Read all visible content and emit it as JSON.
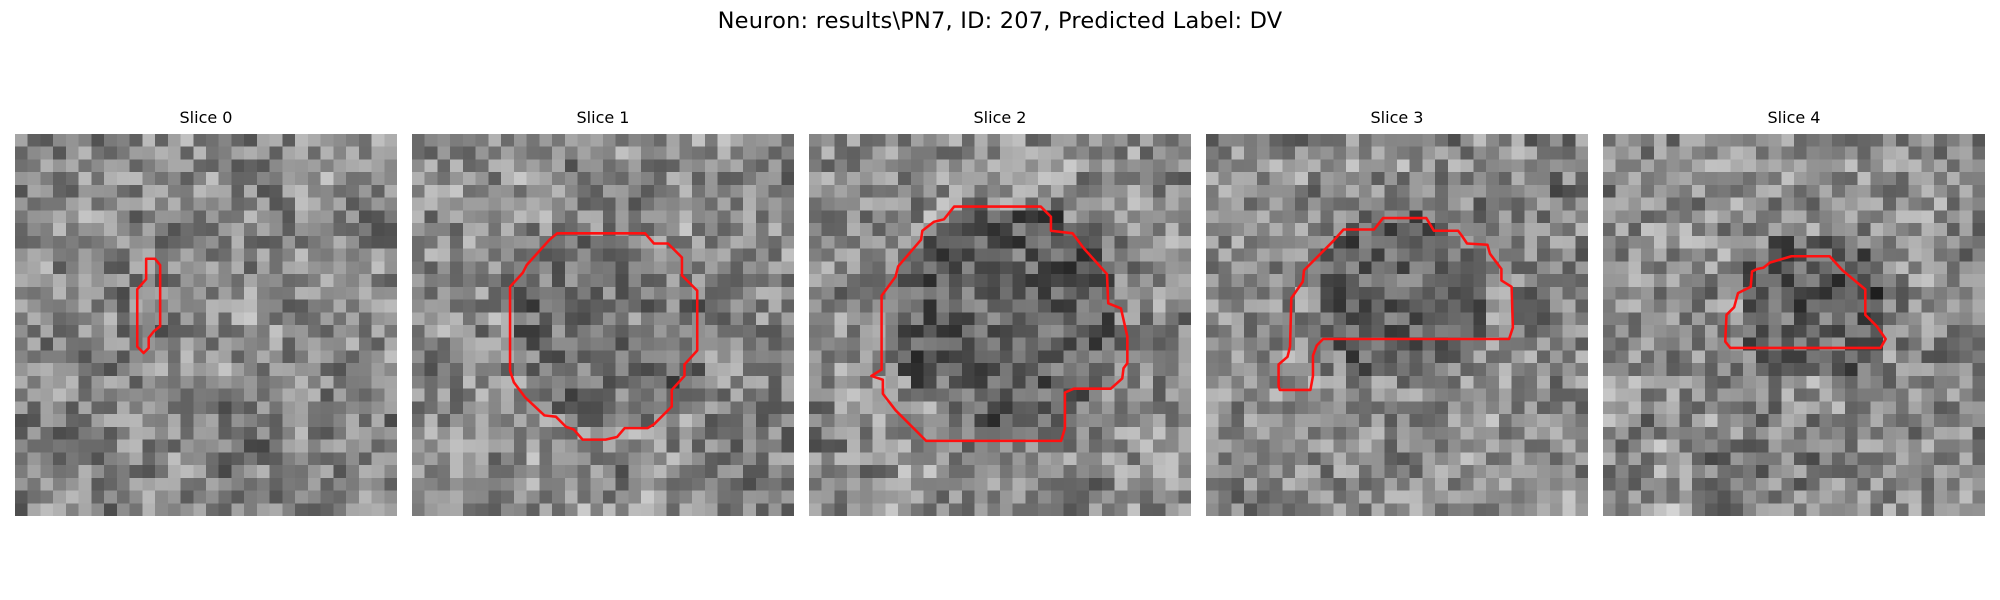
{
  "figure": {
    "suptitle": "Neuron: results\\PN7, ID: 207, Predicted Label: DV",
    "contour_color": "#ff1010",
    "colormap": "grayscale",
    "panels": [
      {
        "title": "Slice 0",
        "seed": 11
      },
      {
        "title": "Slice 1",
        "seed": 23
      },
      {
        "title": "Slice 2",
        "seed": 37
      },
      {
        "title": "Slice 3",
        "seed": 49
      },
      {
        "title": "Slice 4",
        "seed": 61
      }
    ]
  }
}
